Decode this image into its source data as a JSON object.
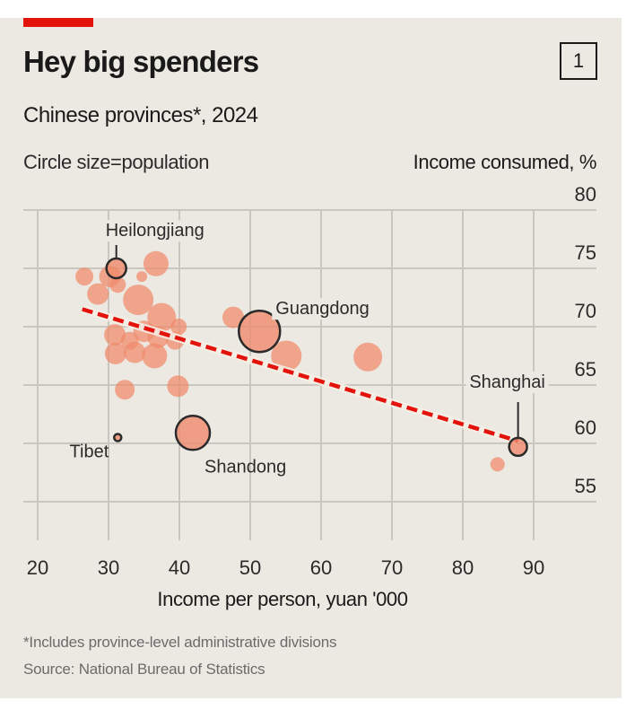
{
  "header": {
    "title": "Hey big spenders",
    "chart_number": "1",
    "subtitle": "Chinese provinces*, 2024",
    "size_note": "Circle size=population"
  },
  "footer": {
    "footnote": "*Includes province-level administrative divisions",
    "source": "Source: National Bureau of Statistics"
  },
  "colors": {
    "background": "#ebe9e2",
    "accent_red": "#e3120b",
    "bubble": "#f0896a",
    "trend": "#e3120b",
    "grid": "#c9c7c0",
    "outline": "#2a2a2a"
  },
  "chart_data": {
    "type": "scatter",
    "title": "Hey big spenders",
    "subtitle": "Chinese provinces*, 2024",
    "xlabel": "Income per person, yuan '000",
    "ylabel": "Income consumed, %",
    "xlim": [
      20,
      95
    ],
    "ylim": [
      52,
      80
    ],
    "x_ticks": [
      20,
      30,
      40,
      50,
      60,
      70,
      80,
      90
    ],
    "y_ticks": [
      80,
      75,
      70,
      65,
      60,
      55
    ],
    "grid": true,
    "size_encoding": "population",
    "points": [
      {
        "x": 26.6,
        "y": 74.3,
        "size": 10,
        "label": ""
      },
      {
        "x": 30.2,
        "y": 74.3,
        "size": 12,
        "label": ""
      },
      {
        "x": 28.5,
        "y": 72.8,
        "size": 12,
        "label": ""
      },
      {
        "x": 31.3,
        "y": 73.6,
        "size": 9,
        "label": ""
      },
      {
        "x": 36.7,
        "y": 75.4,
        "size": 14,
        "label": ""
      },
      {
        "x": 34.7,
        "y": 74.3,
        "size": 6,
        "label": ""
      },
      {
        "x": 34.2,
        "y": 72.3,
        "size": 17,
        "label": ""
      },
      {
        "x": 37.5,
        "y": 70.8,
        "size": 16,
        "label": ""
      },
      {
        "x": 39.9,
        "y": 70.0,
        "size": 9,
        "label": ""
      },
      {
        "x": 30.9,
        "y": 69.3,
        "size": 12,
        "label": ""
      },
      {
        "x": 35.0,
        "y": 69.6,
        "size": 12,
        "label": ""
      },
      {
        "x": 33.0,
        "y": 68.8,
        "size": 10,
        "label": ""
      },
      {
        "x": 37.0,
        "y": 69.1,
        "size": 12,
        "label": ""
      },
      {
        "x": 39.4,
        "y": 68.8,
        "size": 10,
        "label": ""
      },
      {
        "x": 31.0,
        "y": 67.7,
        "size": 12,
        "label": ""
      },
      {
        "x": 33.7,
        "y": 67.8,
        "size": 12,
        "label": ""
      },
      {
        "x": 36.5,
        "y": 67.5,
        "size": 14,
        "label": ""
      },
      {
        "x": 32.3,
        "y": 64.6,
        "size": 11,
        "label": ""
      },
      {
        "x": 39.8,
        "y": 64.9,
        "size": 12,
        "label": ""
      },
      {
        "x": 47.6,
        "y": 70.8,
        "size": 12,
        "label": ""
      },
      {
        "x": 55.1,
        "y": 67.5,
        "size": 17,
        "label": ""
      },
      {
        "x": 66.6,
        "y": 67.4,
        "size": 16,
        "label": ""
      },
      {
        "x": 84.9,
        "y": 58.2,
        "size": 8,
        "label": ""
      },
      {
        "x": 31.1,
        "y": 75.0,
        "size": 11,
        "label": "Heilongjiang",
        "highlight": true
      },
      {
        "x": 51.3,
        "y": 69.6,
        "size": 23,
        "label": "Guangdong",
        "highlight": true
      },
      {
        "x": 41.9,
        "y": 60.9,
        "size": 19,
        "label": "Shandong",
        "highlight": true
      },
      {
        "x": 31.3,
        "y": 60.5,
        "size": 4,
        "label": "Tibet",
        "highlight": true
      },
      {
        "x": 87.8,
        "y": 59.7,
        "size": 10,
        "label": "Shanghai",
        "highlight": true
      }
    ],
    "trend_line": {
      "style": "dashed",
      "from": {
        "x": 26.3,
        "y": 71.5
      },
      "to": {
        "x": 87.8,
        "y": 60.2
      }
    },
    "annotations": [
      "Heilongjiang",
      "Guangdong",
      "Shandong",
      "Tibet",
      "Shanghai"
    ]
  }
}
